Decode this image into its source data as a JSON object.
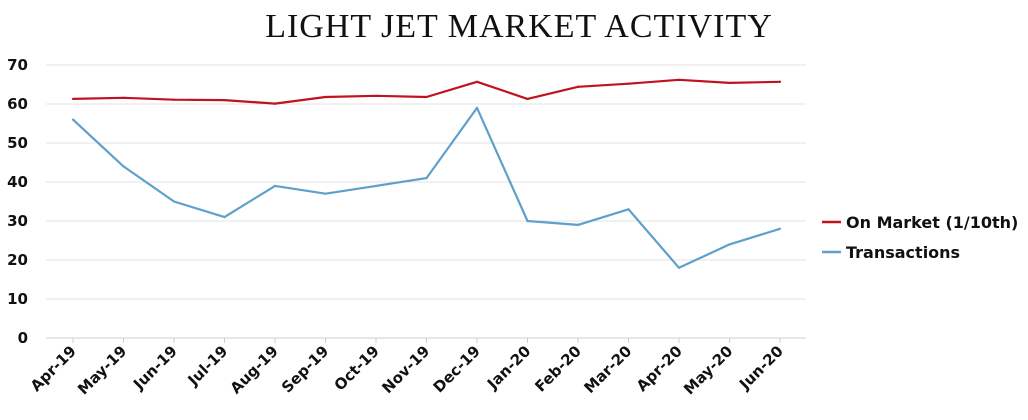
{
  "chart_data": {
    "type": "line",
    "title": "LIGHT JET MARKET ACTIVITY",
    "xlabel": "",
    "ylabel": "",
    "ylim": [
      0,
      70
    ],
    "yticks": [
      0,
      10,
      20,
      30,
      40,
      50,
      60,
      70
    ],
    "grid": true,
    "legend_position": "right",
    "categories": [
      "Apr-19",
      "May-19",
      "Jun-19",
      "Jul-19",
      "Aug-19",
      "Sep-19",
      "Oct-19",
      "Nov-19",
      "Dec-19",
      "Jan-20",
      "Feb-20",
      "Mar-20",
      "Apr-20",
      "May-20",
      "Jun-20"
    ],
    "series": [
      {
        "name": "On Market (1/10th)",
        "color": "#c0121f",
        "values": [
          61.3,
          61.6,
          61.1,
          61.0,
          60.1,
          61.8,
          62.1,
          61.8,
          65.7,
          61.3,
          64.4,
          65.2,
          66.2,
          65.4,
          65.7
        ]
      },
      {
        "name": "Transactions",
        "color": "#5ea0cc",
        "values": [
          56,
          44,
          35,
          31,
          39,
          37,
          39,
          41,
          59,
          30,
          29,
          33,
          18,
          24,
          28
        ]
      }
    ]
  }
}
